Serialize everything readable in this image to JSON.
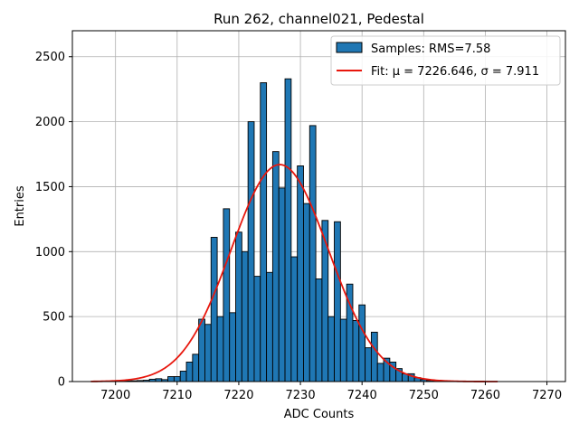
{
  "chart_data": {
    "type": "bar",
    "title": "Run 262, channel021, Pedestal",
    "xlabel": "ADC Counts",
    "ylabel": "Entries",
    "xlim": [
      7193,
      7273
    ],
    "ylim": [
      0,
      2700
    ],
    "xticks": [
      7200,
      7210,
      7220,
      7230,
      7240,
      7250,
      7260,
      7270
    ],
    "yticks": [
      0,
      500,
      1000,
      1500,
      2000,
      2500
    ],
    "grid": true,
    "legend_position": "top-right",
    "histogram": {
      "name": "Samples: RMS=7.58",
      "bin_width": 1,
      "bin_centers": [
        7200,
        7201,
        7202,
        7203,
        7204,
        7205,
        7206,
        7207,
        7208,
        7209,
        7210,
        7211,
        7212,
        7213,
        7214,
        7215,
        7216,
        7217,
        7218,
        7219,
        7220,
        7221,
        7222,
        7223,
        7224,
        7225,
        7226,
        7227,
        7228,
        7229,
        7230,
        7231,
        7232,
        7233,
        7234,
        7235,
        7236,
        7237,
        7238,
        7239,
        7240,
        7241,
        7242,
        7243,
        7244,
        7245,
        7246,
        7247,
        7248,
        7249,
        7250,
        7251,
        7252,
        7253
      ],
      "values": [
        3,
        3,
        5,
        6,
        8,
        10,
        18,
        22,
        15,
        38,
        38,
        80,
        150,
        210,
        480,
        440,
        1110,
        500,
        1330,
        530,
        1150,
        1000,
        2000,
        810,
        2300,
        840,
        1770,
        1490,
        2330,
        960,
        1660,
        1370,
        1970,
        790,
        1240,
        500,
        1230,
        480,
        750,
        470,
        590,
        260,
        380,
        140,
        180,
        150,
        100,
        60,
        60,
        30,
        15,
        8,
        4,
        2
      ],
      "color": "#1f77b4",
      "edge_color": "#000000"
    },
    "fit": {
      "name": "Fit: μ = 7226.646, σ = 7.911",
      "mu": 7226.646,
      "sigma": 7.911,
      "peak": 1670,
      "x_range": [
        7196,
        7262
      ],
      "color": "#e8170d"
    }
  }
}
